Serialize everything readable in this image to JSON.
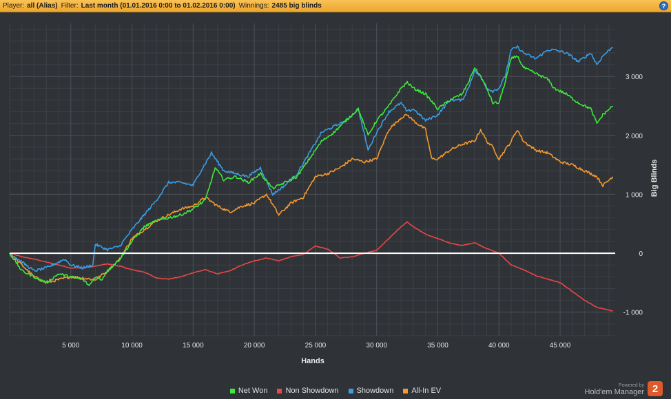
{
  "header": {
    "player_label": "Player:",
    "player_value": "all (Alias)",
    "filter_label": "Filter:",
    "filter_value": "Last month (01.01.2016 0:00 to 01.02.2016 0:00)",
    "winnings_label": "Winnings:",
    "winnings_value": "2485 big blinds",
    "help_glyph": "?"
  },
  "legend": {
    "net_won": "Net Won",
    "non_showdown": "Non Showdown",
    "showdown": "Showdown",
    "allin_ev": "All-In EV"
  },
  "branding": {
    "powered_by": "Powered by",
    "product": "Hold'em Manager",
    "logo_glyph": "2"
  },
  "chart_data": {
    "type": "line",
    "xlabel": "Hands",
    "ylabel": "Big Blinds",
    "xlim": [
      0,
      49500
    ],
    "ylim": [
      -1400,
      3900
    ],
    "x_ticks": [
      5000,
      10000,
      15000,
      20000,
      25000,
      30000,
      35000,
      40000,
      45000
    ],
    "x_tick_labels": [
      "5 000",
      "10 000",
      "15 000",
      "20 000",
      "25 000",
      "30 000",
      "35 000",
      "40 000",
      "45 000"
    ],
    "y_ticks": [
      -1000,
      0,
      1000,
      2000,
      3000
    ],
    "y_tick_labels": [
      "-1 000",
      "0",
      "1 000",
      "2 000",
      "3 000"
    ],
    "grid": true,
    "legend_position": "bottom",
    "zero_line_color": "#ffffff",
    "series": [
      {
        "name": "Net Won",
        "color": "#3ee83e",
        "x": [
          0,
          1000,
          2000,
          3000,
          4000,
          5000,
          6000,
          6500,
          7000,
          7500,
          8000,
          9000,
          10000,
          11000,
          12000,
          13000,
          14000,
          15000,
          16000,
          16800,
          17500,
          18500,
          19500,
          20500,
          21500,
          22500,
          23500,
          24500,
          25500,
          26500,
          27500,
          28500,
          29300,
          30000,
          31000,
          32000,
          32500,
          33000,
          34000,
          35000,
          36000,
          37000,
          37500,
          38000,
          38500,
          39000,
          39500,
          40000,
          40500,
          41000,
          41500,
          42000,
          43000,
          44000,
          44500,
          45500,
          46500,
          47500,
          48000,
          48500,
          49300
        ],
        "y": [
          0,
          -300,
          -400,
          -500,
          -350,
          -400,
          -450,
          -550,
          -400,
          -450,
          -300,
          -100,
          200,
          450,
          550,
          600,
          650,
          750,
          900,
          1450,
          1250,
          1300,
          1200,
          1350,
          1100,
          1200,
          1300,
          1600,
          1900,
          2050,
          2250,
          2450,
          2000,
          2250,
          2500,
          2800,
          2900,
          2800,
          2700,
          2450,
          2600,
          2700,
          2900,
          3150,
          3000,
          2800,
          2550,
          2550,
          2900,
          3300,
          3350,
          3150,
          3050,
          2950,
          2800,
          2700,
          2550,
          2450,
          2200,
          2350,
          2500
        ]
      },
      {
        "name": "Non Showdown",
        "color": "#e84848",
        "x": [
          0,
          1000,
          2000,
          3000,
          4000,
          5000,
          6000,
          7000,
          8000,
          9000,
          10000,
          11000,
          12000,
          13000,
          14000,
          15000,
          16000,
          17000,
          18000,
          19000,
          20000,
          21000,
          22000,
          23000,
          24000,
          25000,
          26000,
          27000,
          28000,
          29000,
          30000,
          31000,
          32000,
          32500,
          33000,
          34000,
          35000,
          36000,
          37000,
          38000,
          39000,
          40000,
          41000,
          42000,
          43000,
          44000,
          45000,
          46000,
          47000,
          48000,
          49300
        ],
        "y": [
          0,
          -60,
          -100,
          -150,
          -200,
          -250,
          -250,
          -220,
          -180,
          -220,
          -280,
          -320,
          -420,
          -440,
          -400,
          -330,
          -280,
          -350,
          -300,
          -200,
          -130,
          -80,
          -130,
          -60,
          -20,
          120,
          70,
          -80,
          -60,
          0,
          50,
          250,
          450,
          530,
          450,
          320,
          250,
          170,
          130,
          180,
          80,
          0,
          -200,
          -280,
          -380,
          -440,
          -500,
          -650,
          -800,
          -920,
          -980
        ]
      },
      {
        "name": "Showdown",
        "color": "#3a9ee6",
        "x": [
          0,
          1000,
          2000,
          3000,
          4000,
          4500,
          5000,
          6000,
          6800,
          7000,
          8000,
          9000,
          10000,
          11000,
          12000,
          13000,
          14000,
          15000,
          15500,
          16500,
          17500,
          18500,
          19500,
          20500,
          21500,
          22500,
          23500,
          24500,
          25500,
          26500,
          27500,
          28500,
          29300,
          30000,
          31000,
          32000,
          32500,
          33000,
          34000,
          35000,
          36000,
          37000,
          37500,
          38000,
          38500,
          39000,
          39500,
          40000,
          40500,
          41000,
          41500,
          42000,
          43000,
          44000,
          44500,
          45500,
          46500,
          47500,
          48000,
          48500,
          49300
        ],
        "y": [
          0,
          -150,
          -300,
          -250,
          -150,
          -100,
          -200,
          -250,
          -200,
          150,
          60,
          120,
          400,
          650,
          900,
          1200,
          1200,
          1150,
          1350,
          1700,
          1400,
          1350,
          1300,
          1450,
          1000,
          1150,
          1350,
          1700,
          2050,
          2150,
          2250,
          2450,
          1750,
          2050,
          2400,
          2550,
          2400,
          2450,
          2250,
          2350,
          2600,
          2600,
          2800,
          3100,
          3000,
          2800,
          2750,
          2800,
          3000,
          3450,
          3500,
          3400,
          3300,
          3450,
          3450,
          3400,
          3250,
          3400,
          3200,
          3350,
          3500
        ]
      },
      {
        "name": "All-In EV",
        "color": "#f59a2e",
        "x": [
          0,
          1000,
          2000,
          3000,
          4000,
          5000,
          6000,
          7000,
          8000,
          9000,
          10000,
          11000,
          12000,
          13000,
          14000,
          15000,
          16000,
          17000,
          18000,
          19000,
          20000,
          21000,
          22000,
          23000,
          24000,
          25000,
          26000,
          27000,
          28000,
          29000,
          30000,
          31000,
          32000,
          32500,
          33000,
          34000,
          34500,
          35000,
          36000,
          37000,
          38000,
          38500,
          39000,
          39500,
          40000,
          40500,
          41000,
          41500,
          42000,
          43000,
          44000,
          45000,
          46000,
          47000,
          48000,
          48500,
          49300
        ],
        "y": [
          0,
          -200,
          -400,
          -500,
          -450,
          -400,
          -420,
          -450,
          -300,
          -100,
          250,
          400,
          550,
          650,
          750,
          800,
          950,
          800,
          700,
          800,
          850,
          1000,
          650,
          850,
          950,
          1300,
          1350,
          1450,
          1600,
          1550,
          1600,
          2100,
          2300,
          2350,
          2250,
          2100,
          1600,
          1600,
          1750,
          1850,
          1900,
          2100,
          1900,
          1800,
          1600,
          1750,
          1900,
          2100,
          1900,
          1750,
          1700,
          1550,
          1500,
          1400,
          1300,
          1150,
          1300
        ]
      }
    ]
  }
}
